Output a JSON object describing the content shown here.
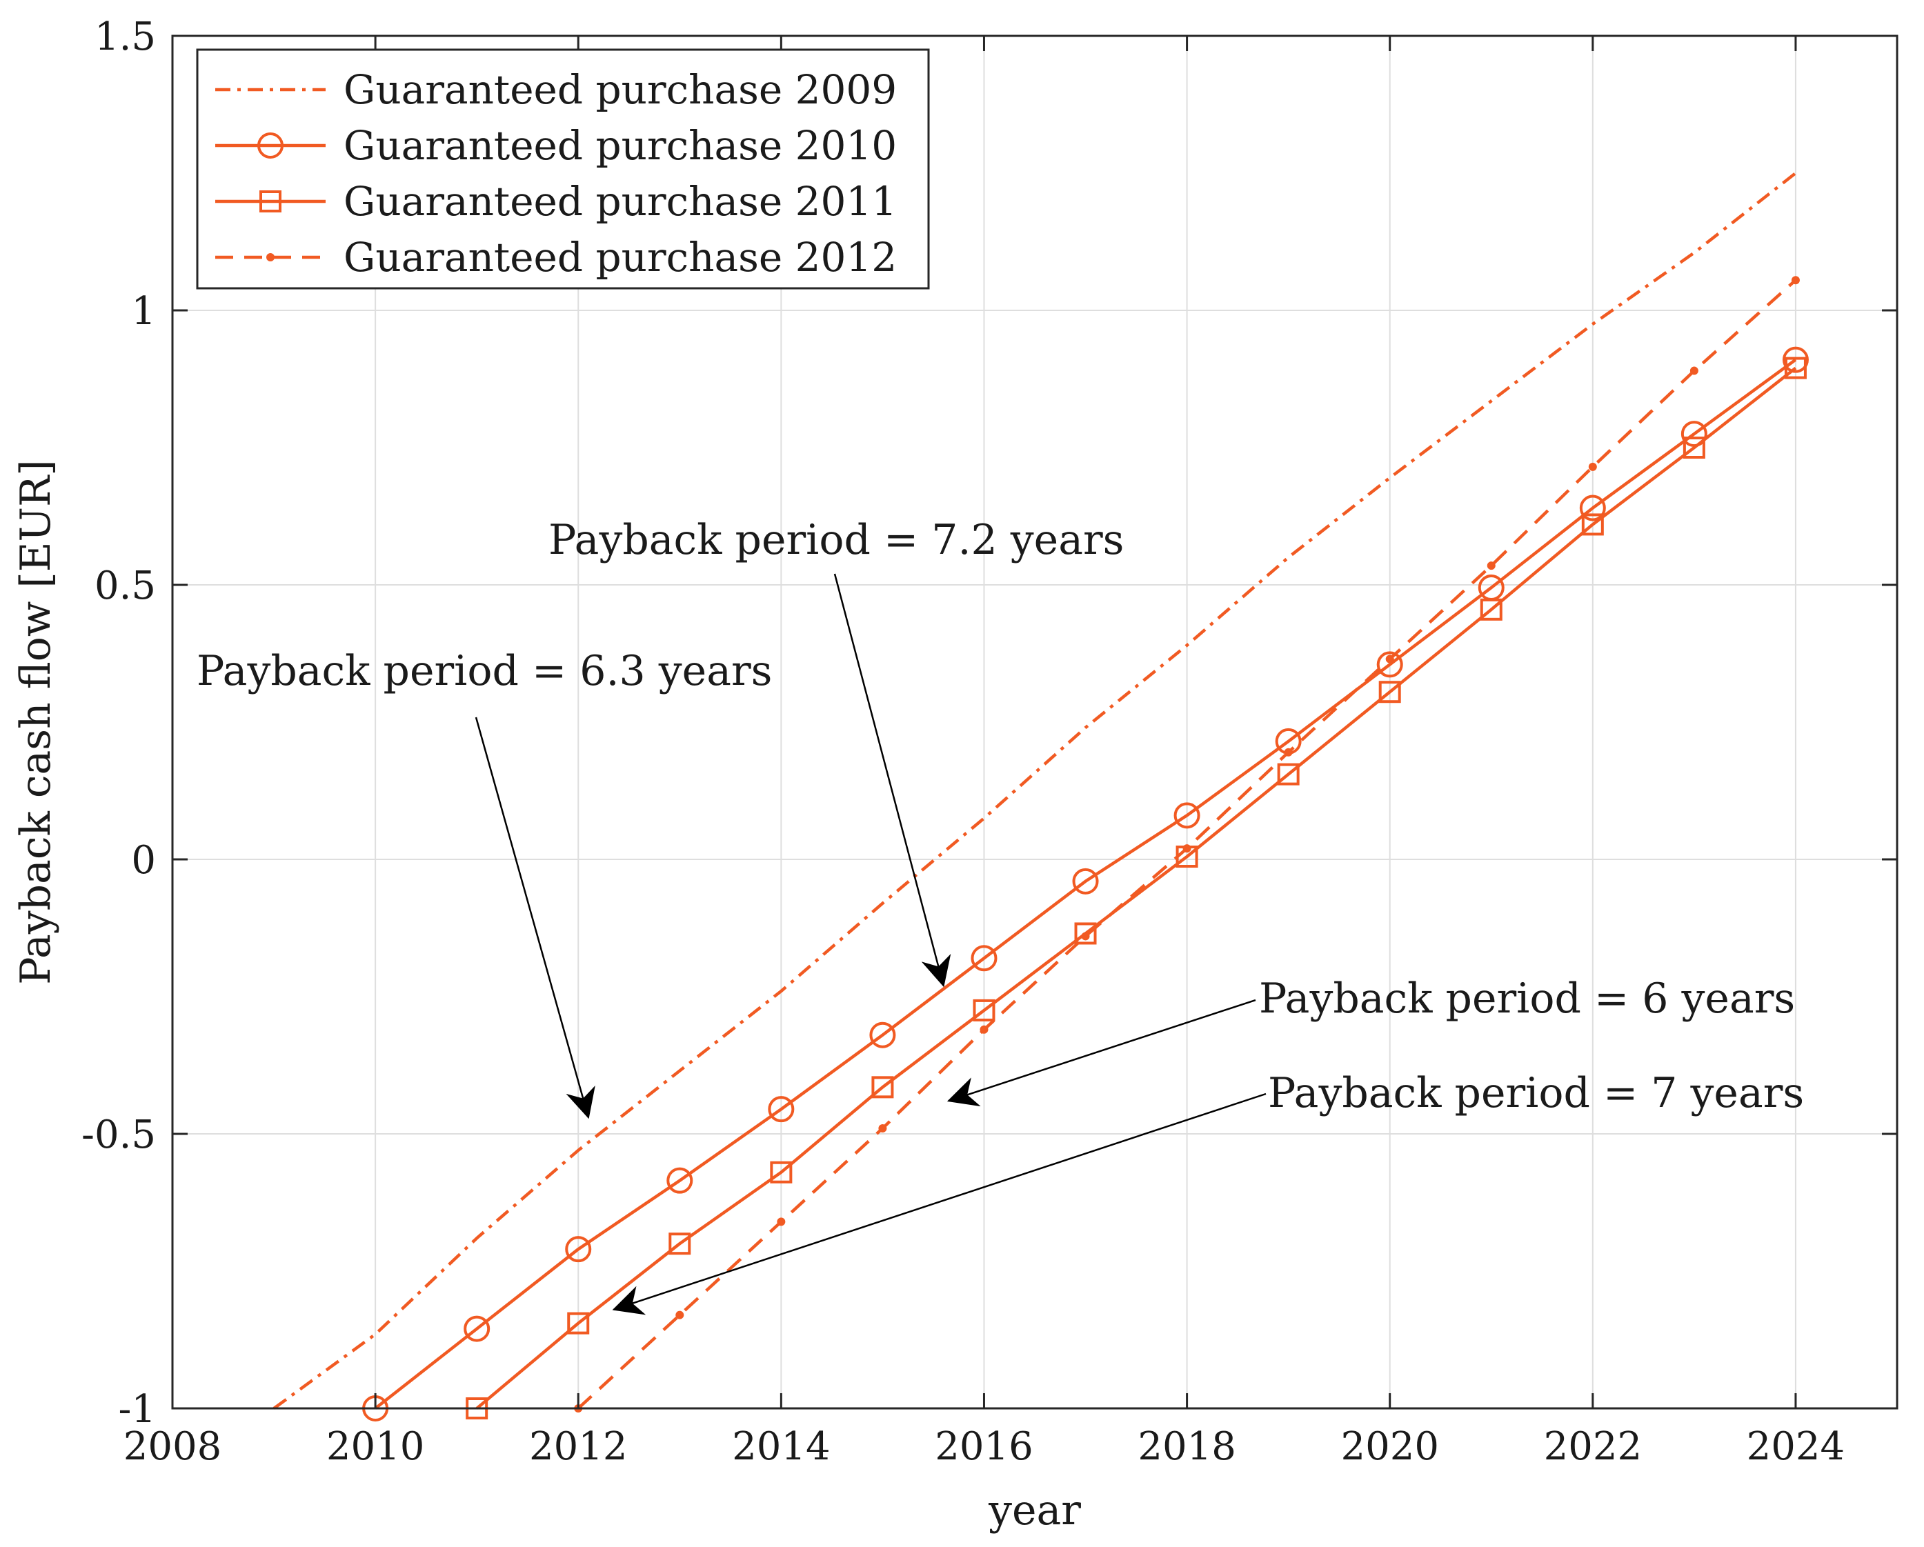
{
  "chart_data": {
    "type": "line",
    "title": "",
    "xlabel": "year",
    "ylabel": "Payback cash flow [EUR]",
    "xlim": [
      2008,
      2025
    ],
    "ylim": [
      -1,
      1.5
    ],
    "xticks": [
      2008,
      2010,
      2012,
      2014,
      2016,
      2018,
      2020,
      2022,
      2024
    ],
    "xtick_labels": [
      "2008",
      "2010",
      "2012",
      "2014",
      "2016",
      "2018",
      "2020",
      "2022",
      "2024"
    ],
    "yticks": [
      -1,
      -0.5,
      0,
      0.5,
      1,
      1.5
    ],
    "ytick_labels": [
      "-1",
      "-0.5",
      "0",
      "0.5",
      "1",
      "1.5"
    ],
    "grid": true,
    "legend_position": "top-left",
    "color": "#f15a22",
    "series": [
      {
        "name": "Guaranteed purchase 2009",
        "line": "dash-dot",
        "marker": "none",
        "x": [
          2009,
          2010,
          2011,
          2012,
          2013,
          2014,
          2015,
          2016,
          2017,
          2018,
          2019,
          2020,
          2021,
          2022,
          2023,
          2024
        ],
        "values": [
          -1.0,
          -0.865,
          -0.69,
          -0.53,
          -0.385,
          -0.24,
          -0.08,
          0.075,
          0.24,
          0.39,
          0.55,
          0.695,
          0.835,
          0.975,
          1.105,
          1.25
        ]
      },
      {
        "name": "Guaranteed purchase 2010",
        "line": "solid",
        "marker": "circle",
        "x": [
          2010,
          2011,
          2012,
          2013,
          2014,
          2015,
          2016,
          2017,
          2018,
          2019,
          2020,
          2021,
          2022,
          2023,
          2024
        ],
        "values": [
          -1.0,
          -0.855,
          -0.71,
          -0.585,
          -0.455,
          -0.32,
          -0.18,
          -0.04,
          0.08,
          0.215,
          0.355,
          0.495,
          0.64,
          0.775,
          0.91
        ]
      },
      {
        "name": "Guaranteed purchase 2011",
        "line": "solid",
        "marker": "square",
        "x": [
          2011,
          2012,
          2013,
          2014,
          2015,
          2016,
          2017,
          2018,
          2019,
          2020,
          2021,
          2022,
          2023,
          2024
        ],
        "values": [
          -1.0,
          -0.845,
          -0.7,
          -0.57,
          -0.415,
          -0.275,
          -0.135,
          0.005,
          0.155,
          0.305,
          0.455,
          0.61,
          0.75,
          0.895
        ]
      },
      {
        "name": "Guaranteed purchase 2012",
        "line": "dashed",
        "marker": "dot",
        "x": [
          2012,
          2013,
          2014,
          2015,
          2016,
          2017,
          2018,
          2019,
          2020,
          2021,
          2022,
          2023,
          2024
        ],
        "values": [
          -1.0,
          -0.83,
          -0.66,
          -0.49,
          -0.31,
          -0.14,
          0.02,
          0.195,
          0.365,
          0.535,
          0.715,
          0.89,
          1.055
        ]
      }
    ],
    "annotations": [
      {
        "text": "Payback period = 6.3 years",
        "arrow_to": [
          2012.1,
          -0.47
        ]
      },
      {
        "text": "Payback period = 7.2 years",
        "arrow_to": [
          2015.6,
          -0.23
        ]
      },
      {
        "text": "Payback period = 6 years",
        "arrow_to": [
          2015.65,
          -0.44
        ]
      },
      {
        "text": "Payback period = 7 years",
        "arrow_to": [
          2012.35,
          -0.82
        ]
      }
    ]
  }
}
